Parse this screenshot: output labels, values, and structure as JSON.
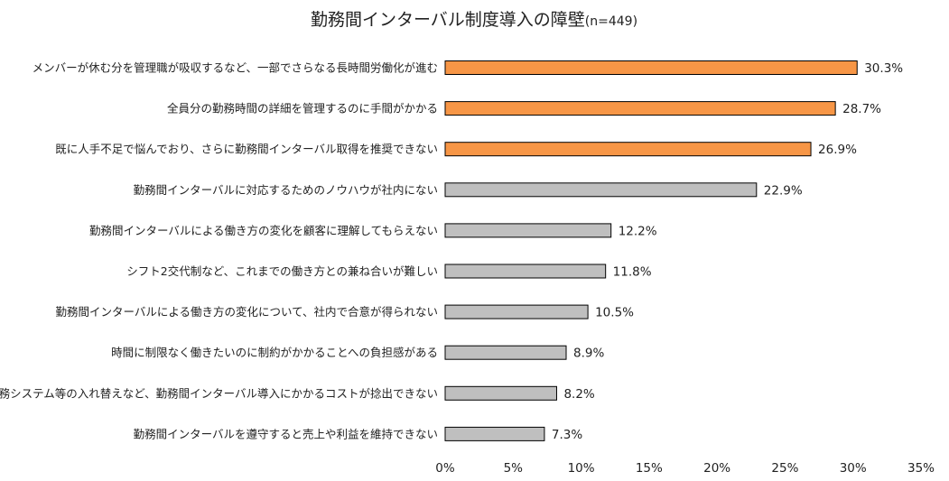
{
  "chart_data": {
    "type": "bar",
    "orientation": "horizontal",
    "title": "勤務間インターバル制度導入の障壁",
    "subtitle": "(n=449)",
    "categories": [
      "メンバーが休む分を管理職が吸収するなど、一部でさらなる長時間労働化が進む",
      "全員分の勤務時間の詳細を管理するのに手間がかかる",
      "既に人手不足で悩んでおり、さらに勤務間インターバル取得を推奨できない",
      "勤務間インターバルに対応するためのノウハウが社内にない",
      "勤務間インターバルによる働き方の変化を顧客に理解してもらえない",
      "シフト2交代制など、これまでの働き方との兼ね合いが難しい",
      "勤務間インターバルによる働き方の変化について、社内で合意が得られない",
      "時間に制限なく働きたいのに制約がかかることへの負担感がある",
      "労務システム等の入れ替えなど、勤務間インターバル導入にかかるコストが捻出できない",
      "勤務間インターバルを遵守すると売上や利益を維持できない"
    ],
    "values": [
      30.3,
      28.7,
      26.9,
      22.9,
      12.2,
      11.8,
      10.5,
      8.9,
      8.2,
      7.3
    ],
    "value_labels": [
      "30.3%",
      "28.7%",
      "26.9%",
      "22.9%",
      "12.2%",
      "11.8%",
      "10.5%",
      "8.9%",
      "8.2%",
      "7.3%"
    ],
    "highlight_count": 3,
    "colors": {
      "highlight": "#F79646",
      "normal": "#BFBFBF",
      "border": "#000000"
    },
    "xlim": [
      0,
      35
    ],
    "xticks": [
      0,
      5,
      10,
      15,
      20,
      25,
      30,
      35
    ],
    "xtick_labels": [
      "0%",
      "5%",
      "10%",
      "15%",
      "20%",
      "25%",
      "30%",
      "35%"
    ],
    "grid": false,
    "legend": "none"
  }
}
